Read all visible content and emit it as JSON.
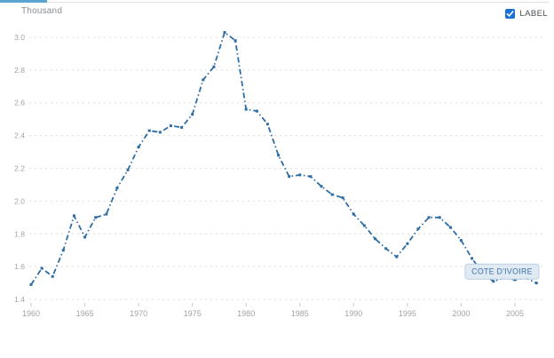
{
  "header": {
    "unit_label": "Thousand",
    "label_toggle": "LABEL"
  },
  "colors": {
    "accent_bar": "#5ba3d0",
    "line": "#2e6da4",
    "grid": "#dcdcdc",
    "axis_text": "#a3a3a3",
    "tick_mark": "#c9c9c9",
    "checkbox_fill": "#1a6fd4",
    "tooltip_fill": "#dfe9f2",
    "tooltip_border": "#b9cfe3",
    "tooltip_text": "#3f72a5"
  },
  "chart_data": {
    "type": "line",
    "title": "",
    "unit": "Thousand",
    "xlabel": "",
    "ylabel": "Thousand",
    "x_range": [
      1960,
      2007
    ],
    "ylim": [
      1.4,
      3.0
    ],
    "y_ticks": [
      3.0,
      2.8,
      2.6,
      2.4,
      2.2,
      2.0,
      1.8,
      1.6,
      1.4
    ],
    "x_ticks": [
      1960,
      1965,
      1970,
      1975,
      1980,
      1985,
      1990,
      1995,
      2000,
      2005
    ],
    "grid": true,
    "legend_position": "none",
    "series": [
      {
        "name": "COTE D'IVOIRE",
        "x": [
          1960,
          1961,
          1962,
          1963,
          1964,
          1965,
          1966,
          1967,
          1968,
          1969,
          1970,
          1971,
          1972,
          1973,
          1974,
          1975,
          1976,
          1977,
          1978,
          1979,
          1980,
          1981,
          1982,
          1983,
          1984,
          1985,
          1986,
          1987,
          1988,
          1989,
          1990,
          1991,
          1992,
          1993,
          1994,
          1995,
          1996,
          1997,
          1998,
          1999,
          2000,
          2001,
          2002,
          2003,
          2004,
          2005,
          2006,
          2007
        ],
        "values": [
          1.49,
          1.59,
          1.54,
          1.7,
          1.91,
          1.78,
          1.9,
          1.92,
          2.08,
          2.19,
          2.33,
          2.43,
          2.42,
          2.46,
          2.45,
          2.53,
          2.74,
          2.82,
          3.03,
          2.98,
          2.56,
          2.55,
          2.47,
          2.28,
          2.15,
          2.16,
          2.15,
          2.09,
          2.04,
          2.02,
          1.92,
          1.85,
          1.77,
          1.71,
          1.66,
          1.74,
          1.83,
          1.9,
          1.9,
          1.84,
          1.76,
          1.65,
          1.56,
          1.51,
          1.53,
          1.52,
          1.53,
          1.5
        ]
      }
    ],
    "annotation": {
      "text": "COTE D'IVOIRE",
      "anchor_year": 2003.8,
      "anchor_value": 1.57
    }
  }
}
